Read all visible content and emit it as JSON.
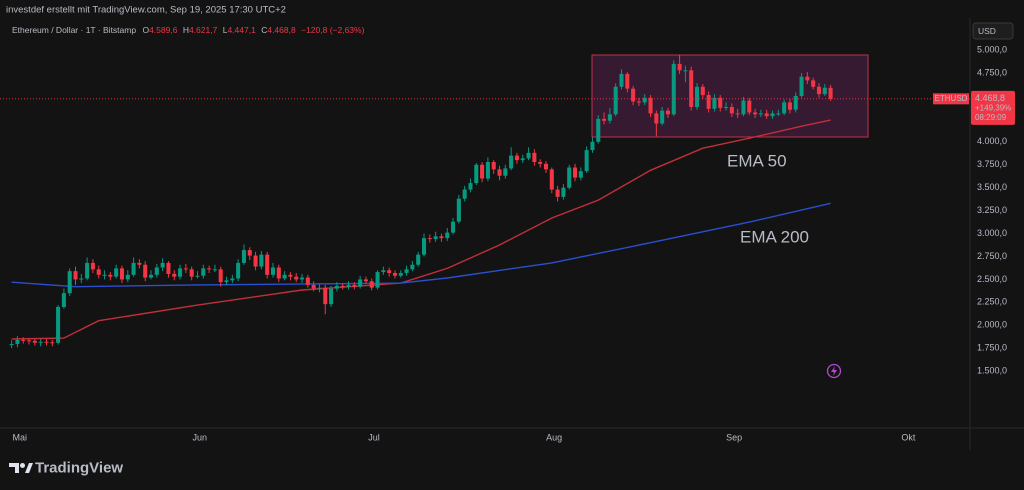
{
  "header": {
    "credit": "investdef erstellt mit TradingView.com, Sep 19, 2025 17:30 UTC+2",
    "symbol": "Ethereum / Dollar · 1T · Bitstamp",
    "ohlc": [
      {
        "label": "O",
        "value": "4.589,6"
      },
      {
        "label": "H",
        "value": "4.621,7"
      },
      {
        "label": "L",
        "value": "4.447,1"
      },
      {
        "label": "C",
        "value": "4.468,8"
      }
    ],
    "change": "−120,8 (−2,63%)"
  },
  "chart_data": {
    "type": "candlestick",
    "up_color": "#089981",
    "down_color": "#f23645",
    "open": [
      1790,
      1795,
      1840,
      1835,
      1830,
      1810,
      1820,
      1815,
      1810,
      2200,
      2350,
      2590,
      2500,
      2510,
      2680,
      2610,
      2550,
      2550,
      2530,
      2620,
      2500,
      2550,
      2680,
      2660,
      2520,
      2550,
      2630,
      2680,
      2560,
      2530,
      2620,
      2610,
      2530,
      2540,
      2620,
      2610,
      2610,
      2470,
      2490,
      2510,
      2680,
      2820,
      2760,
      2640,
      2770,
      2550,
      2630,
      2510,
      2550,
      2530,
      2500,
      2520,
      2440,
      2400,
      2410,
      2230,
      2400,
      2430,
      2420,
      2440,
      2420,
      2500,
      2480,
      2410,
      2580,
      2600,
      2570,
      2540,
      2570,
      2610,
      2660,
      2770,
      2950,
      2940,
      2970,
      2950,
      3010,
      3130,
      3380,
      3480,
      3550,
      3750,
      3600,
      3780,
      3700,
      3630,
      3710,
      3850,
      3800,
      3820,
      3880,
      3780,
      3760,
      3700,
      3480,
      3400,
      3500,
      3720,
      3610,
      3680,
      3910,
      4000,
      4250,
      4230,
      4300,
      4600,
      4740,
      4580,
      4440,
      4430,
      4480,
      4310,
      4200,
      4340,
      4300,
      4850,
      4780,
      4780,
      4380,
      4600,
      4510,
      4360,
      4480,
      4370,
      4380,
      4310,
      4300,
      4450,
      4320,
      4300,
      4310,
      4280,
      4310,
      4310,
      4430,
      4350,
      4500,
      4710,
      4670,
      4600,
      4520,
      4589.6
    ],
    "high": [
      1835,
      1880,
      1870,
      1860,
      1850,
      1850,
      1850,
      1840,
      2220,
      2400,
      2620,
      2640,
      2560,
      2740,
      2720,
      2650,
      2600,
      2580,
      2660,
      2650,
      2600,
      2740,
      2720,
      2700,
      2600,
      2670,
      2730,
      2700,
      2600,
      2660,
      2670,
      2640,
      2590,
      2660,
      2650,
      2660,
      2640,
      2530,
      2550,
      2720,
      2880,
      2850,
      2800,
      2810,
      2800,
      2680,
      2660,
      2590,
      2580,
      2570,
      2560,
      2550,
      2480,
      2450,
      2440,
      2430,
      2470,
      2460,
      2480,
      2470,
      2540,
      2530,
      2510,
      2600,
      2640,
      2630,
      2600,
      2600,
      2650,
      2700,
      2800,
      3000,
      2990,
      3020,
      3000,
      3060,
      3170,
      3420,
      3520,
      3600,
      3770,
      3780,
      3830,
      3800,
      3740,
      3750,
      3940,
      3880,
      3860,
      3940,
      3920,
      3810,
      3790,
      3720,
      3520,
      3540,
      3750,
      3760,
      3720,
      3950,
      4050,
      4290,
      4320,
      4370,
      4640,
      4790,
      4760,
      4610,
      4480,
      4520,
      4510,
      4340,
      4380,
      4370,
      4890,
      4950,
      4830,
      4820,
      4640,
      4630,
      4550,
      4520,
      4510,
      4430,
      4420,
      4360,
      4490,
      4480,
      4360,
      4350,
      4350,
      4340,
      4350,
      4460,
      4470,
      4540,
      4750,
      4760,
      4700,
      4640,
      4630,
      4621.7
    ],
    "low": [
      1750,
      1760,
      1800,
      1790,
      1780,
      1770,
      1780,
      1770,
      1790,
      2180,
      2320,
      2440,
      2460,
      2490,
      2570,
      2510,
      2500,
      2490,
      2510,
      2460,
      2470,
      2530,
      2620,
      2480,
      2500,
      2520,
      2590,
      2520,
      2490,
      2500,
      2570,
      2490,
      2510,
      2510,
      2570,
      2580,
      2420,
      2440,
      2460,
      2480,
      2660,
      2710,
      2600,
      2610,
      2510,
      2520,
      2470,
      2490,
      2490,
      2470,
      2460,
      2410,
      2370,
      2360,
      2120,
      2200,
      2370,
      2390,
      2390,
      2390,
      2400,
      2450,
      2380,
      2390,
      2550,
      2530,
      2510,
      2520,
      2540,
      2590,
      2640,
      2750,
      2900,
      2910,
      2910,
      2920,
      2990,
      3110,
      3350,
      3450,
      3530,
      3560,
      3570,
      3650,
      3580,
      3600,
      3690,
      3760,
      3770,
      3800,
      3740,
      3720,
      3660,
      3440,
      3350,
      3370,
      3480,
      3570,
      3580,
      3660,
      3880,
      3980,
      4190,
      4200,
      4280,
      4570,
      4540,
      4400,
      4390,
      4400,
      4270,
      4060,
      4180,
      4260,
      4280,
      4740,
      4650,
      4340,
      4350,
      4470,
      4320,
      4330,
      4330,
      4340,
      4270,
      4260,
      4280,
      4290,
      4260,
      4270,
      4250,
      4250,
      4280,
      4290,
      4310,
      4320,
      4480,
      4630,
      4570,
      4480,
      4500,
      4447.1
    ],
    "close": [
      1795,
      1840,
      1835,
      1830,
      1810,
      1820,
      1815,
      1810,
      2200,
      2350,
      2590,
      2500,
      2510,
      2680,
      2610,
      2550,
      2550,
      2530,
      2620,
      2500,
      2550,
      2680,
      2660,
      2520,
      2550,
      2630,
      2680,
      2560,
      2530,
      2620,
      2610,
      2530,
      2540,
      2620,
      2610,
      2610,
      2470,
      2490,
      2510,
      2680,
      2820,
      2760,
      2640,
      2770,
      2550,
      2630,
      2510,
      2550,
      2530,
      2500,
      2520,
      2440,
      2400,
      2410,
      2230,
      2400,
      2430,
      2420,
      2440,
      2420,
      2500,
      2480,
      2410,
      2580,
      2600,
      2570,
      2540,
      2570,
      2610,
      2660,
      2770,
      2950,
      2940,
      2970,
      2950,
      3010,
      3130,
      3380,
      3480,
      3550,
      3750,
      3600,
      3780,
      3700,
      3630,
      3710,
      3850,
      3800,
      3820,
      3880,
      3780,
      3760,
      3700,
      3480,
      3400,
      3500,
      3720,
      3610,
      3680,
      3910,
      4000,
      4250,
      4230,
      4300,
      4600,
      4740,
      4580,
      4440,
      4430,
      4480,
      4310,
      4200,
      4340,
      4300,
      4850,
      4780,
      4780,
      4380,
      4600,
      4510,
      4360,
      4480,
      4370,
      4380,
      4310,
      4300,
      4450,
      4320,
      4300,
      4310,
      4280,
      4310,
      4310,
      4430,
      4350,
      4500,
      4710,
      4670,
      4600,
      4520,
      4589.6,
      4468.8
    ],
    "indicators": [
      {
        "name": "EMA 50",
        "color": "#c22f3a",
        "x": [
          0,
          9,
          15,
          32,
          50,
          67,
          75,
          84,
          93,
          101,
          110,
          119,
          127,
          136,
          141
        ],
        "values": [
          1850,
          1860,
          2050,
          2220,
          2385,
          2460,
          2620,
          2875,
          3170,
          3365,
          3690,
          3930,
          4040,
          4170,
          4237
        ]
      },
      {
        "name": "EMA 200",
        "color": "#2a4fd0",
        "x": [
          0,
          11,
          32,
          67,
          75,
          93,
          110,
          127,
          141
        ],
        "values": [
          2470,
          2420,
          2440,
          2460,
          2515,
          2680,
          2900,
          3125,
          3330
        ]
      }
    ],
    "xlim": [
      -2,
      165
    ],
    "xticks": [
      {
        "value": 1.4,
        "label": "Mai"
      },
      {
        "value": 32.4,
        "label": "Jun"
      },
      {
        "value": 62.4,
        "label": "Jul"
      },
      {
        "value": 93.4,
        "label": "Aug"
      },
      {
        "value": 124.4,
        "label": "Sep"
      },
      {
        "value": 154.4,
        "label": "Okt"
      }
    ],
    "ylim": [
      880,
      5350
    ],
    "yticks": [
      {
        "value": 5000,
        "label": "5.000,0"
      },
      {
        "value": 4750,
        "label": "4.750,0"
      },
      {
        "value": 4500,
        "label": "4.500,0"
      },
      {
        "value": 4250,
        "label": "4.250,0"
      },
      {
        "value": 4000,
        "label": "4.000,0"
      },
      {
        "value": 3750,
        "label": "3.750,0"
      },
      {
        "value": 3500,
        "label": "3.500,0"
      },
      {
        "value": 3250,
        "label": "3.250,0"
      },
      {
        "value": 3000,
        "label": "3.000,0"
      },
      {
        "value": 2750,
        "label": "2.750,0"
      },
      {
        "value": 2500,
        "label": "2.500,0"
      },
      {
        "value": 2250,
        "label": "2.250,0"
      },
      {
        "value": 2000,
        "label": "2.000,0"
      },
      {
        "value": 1750,
        "label": "1.750,0"
      },
      {
        "value": 1500,
        "label": "1.500,0"
      }
    ],
    "grid": false,
    "currency": "USD",
    "last_price": {
      "symbol": "ETHUSD",
      "label": "4.468,8",
      "change": "+149,39%",
      "countdown": "08:29:09"
    }
  },
  "footer": {
    "brand": "TradingView"
  }
}
